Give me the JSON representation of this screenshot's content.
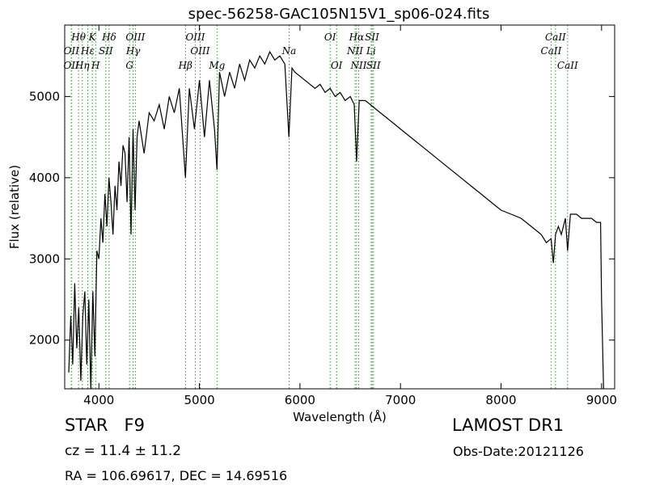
{
  "chart_data": {
    "type": "line",
    "title": "spec-56258-GAC105N15V1_sp06-024.fits",
    "xlabel": "Wavelength (Å)",
    "ylabel": "Flux (relative)",
    "xlim": [
      3660,
      9130
    ],
    "ylim": [
      1400,
      5880
    ],
    "xticks": [
      4000,
      5000,
      6000,
      7000,
      8000,
      9000
    ],
    "yticks": [
      2000,
      3000,
      4000,
      5000
    ],
    "grid": false,
    "line_color": "#000000",
    "marker_color": "#2ca02c",
    "series": [
      {
        "x": [
          3700,
          3720,
          3740,
          3760,
          3780,
          3800,
          3820,
          3840,
          3860,
          3880,
          3900,
          3920,
          3940,
          3960,
          3980,
          4000,
          4020,
          4040,
          4060,
          4080,
          4100,
          4120,
          4140,
          4160,
          4180,
          4200,
          4220,
          4240,
          4260,
          4280,
          4300,
          4320,
          4340,
          4360,
          4380,
          4400,
          4450,
          4500,
          4550,
          4600,
          4650,
          4700,
          4750,
          4800,
          4850,
          4861,
          4900,
          4950,
          5000,
          5050,
          5100,
          5150,
          5175,
          5200,
          5250,
          5300,
          5350,
          5400,
          5450,
          5500,
          5550,
          5600,
          5650,
          5700,
          5750,
          5800,
          5850,
          5890,
          5920,
          5950,
          6000,
          6050,
          6100,
          6150,
          6200,
          6250,
          6300,
          6350,
          6400,
          6450,
          6500,
          6540,
          6563,
          6590,
          6650,
          6700,
          6750,
          6800,
          6850,
          6900,
          6950,
          7000,
          7100,
          7200,
          7300,
          7400,
          7500,
          7600,
          7700,
          7800,
          7900,
          8000,
          8100,
          8200,
          8300,
          8400,
          8450,
          8498,
          8520,
          8542,
          8570,
          8600,
          8640,
          8662,
          8690,
          8750,
          8800,
          8850,
          8900,
          8950,
          8990,
          9000,
          9020
        ],
        "y": [
          1600,
          2300,
          1700,
          2700,
          1900,
          2400,
          1500,
          2300,
          2600,
          1700,
          2500,
          1400,
          2600,
          1800,
          3100,
          3000,
          3500,
          3200,
          3800,
          3400,
          4000,
          3700,
          3300,
          3900,
          3600,
          4200,
          3900,
          4400,
          4300,
          3700,
          4500,
          3300,
          4600,
          3600,
          4500,
          4700,
          4300,
          4800,
          4700,
          4900,
          4600,
          5000,
          4800,
          5100,
          4200,
          4000,
          5100,
          4600,
          5200,
          4500,
          5200,
          4600,
          4100,
          5300,
          5000,
          5300,
          5100,
          5400,
          5200,
          5450,
          5350,
          5500,
          5400,
          5550,
          5450,
          5500,
          5400,
          4500,
          5350,
          5300,
          5250,
          5200,
          5150,
          5100,
          5150,
          5050,
          5100,
          5000,
          5050,
          4950,
          5000,
          4900,
          4200,
          4950,
          4950,
          4900,
          4850,
          4800,
          4750,
          4700,
          4650,
          4600,
          4500,
          4400,
          4300,
          4200,
          4100,
          4000,
          3900,
          3800,
          3700,
          3600,
          3550,
          3500,
          3400,
          3300,
          3200,
          3250,
          2950,
          3300,
          3400,
          3300,
          3500,
          3100,
          3550,
          3550,
          3500,
          3500,
          3500,
          3450,
          3450,
          2500,
          1400
        ]
      }
    ],
    "lines_top": [
      {
        "label": "Hθ",
        "x": 3798,
        "row": 1
      },
      {
        "label": "K",
        "x": 3934,
        "row": 1
      },
      {
        "label": "Hδ",
        "x": 4102,
        "row": 1
      },
      {
        "label": "OIII",
        "x": 4363,
        "row": 1
      },
      {
        "label": "OIII",
        "x": 4959,
        "row": 1
      },
      {
        "label": "OI",
        "x": 6300,
        "row": 1
      },
      {
        "label": "Hα",
        "x": 6563,
        "row": 1
      },
      {
        "label": "SII",
        "x": 6717,
        "row": 1
      },
      {
        "label": "CaII",
        "x": 8542,
        "row": 1
      },
      {
        "label": "OII",
        "x": 3727,
        "row": 2
      },
      {
        "label": "Hε",
        "x": 3889,
        "row": 2
      },
      {
        "label": "SII",
        "x": 4069,
        "row": 2
      },
      {
        "label": "Hγ",
        "x": 4341,
        "row": 2
      },
      {
        "label": "OIII",
        "x": 5007,
        "row": 2
      },
      {
        "label": "Na",
        "x": 5892,
        "row": 2
      },
      {
        "label": "NII",
        "x": 6548,
        "row": 2
      },
      {
        "label": "Li",
        "x": 6708,
        "row": 2
      },
      {
        "label": "CaII",
        "x": 8498,
        "row": 2
      },
      {
        "label": "OII",
        "x": 3726,
        "row": 3
      },
      {
        "label": "Hη",
        "x": 3835,
        "row": 3
      },
      {
        "label": "H",
        "x": 3968,
        "row": 3
      },
      {
        "label": "G",
        "x": 4305,
        "row": 3
      },
      {
        "label": "Hβ",
        "x": 4861,
        "row": 3
      },
      {
        "label": "Mg",
        "x": 5175,
        "row": 3
      },
      {
        "label": "OI",
        "x": 6364,
        "row": 3
      },
      {
        "label": "NII",
        "x": 6584,
        "row": 3
      },
      {
        "label": "SII",
        "x": 6731,
        "row": 3
      },
      {
        "label": "CaII",
        "x": 8662,
        "row": 3
      }
    ]
  },
  "footer": {
    "class_text": "STAR   F9",
    "survey": "LAMOST DR1",
    "cz": "cz = 11.4 ± 11.2",
    "obs_date": "Obs-Date:20121126",
    "radec": "RA = 106.69617, DEC = 14.69516"
  }
}
